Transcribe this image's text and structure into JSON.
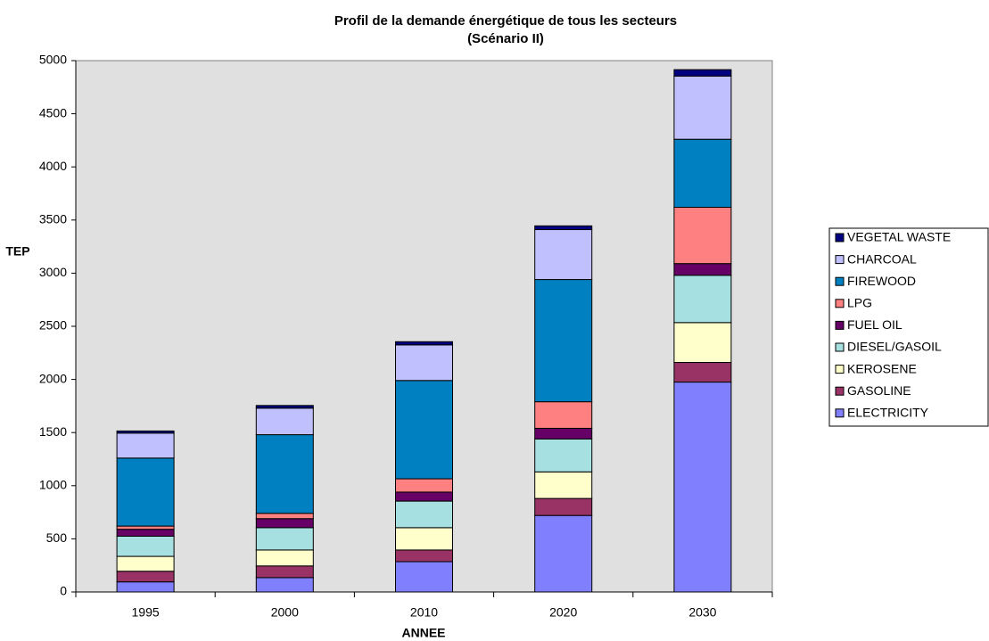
{
  "chart_data": {
    "type": "stacked_bar",
    "title": "Profil de la demande énergétique de tous les secteurs",
    "subtitle": "(Scénario II)",
    "x_label": "ANNEE",
    "y_label": "TEP",
    "categories": [
      "1995",
      "2000",
      "2010",
      "2020",
      "2030"
    ],
    "series": [
      {
        "name": "ELECTRICITY",
        "color": "#8080ff",
        "values": [
          95,
          135,
          285,
          720,
          1975
        ]
      },
      {
        "name": "GASOLINE",
        "color": "#993366",
        "values": [
          100,
          110,
          110,
          160,
          185
        ]
      },
      {
        "name": "KEROSENE",
        "color": "#ffffcc",
        "values": [
          140,
          150,
          210,
          250,
          375
        ]
      },
      {
        "name": "DIESEL/GASOIL",
        "color": "#a6e0e0",
        "values": [
          190,
          210,
          250,
          310,
          445
        ]
      },
      {
        "name": "FUEL OIL",
        "color": "#660066",
        "values": [
          65,
          85,
          85,
          100,
          110
        ]
      },
      {
        "name": "LPG",
        "color": "#ff8080",
        "values": [
          30,
          50,
          125,
          250,
          530
        ]
      },
      {
        "name": "FIREWOOD",
        "color": "#0080c0",
        "values": [
          640,
          740,
          925,
          1150,
          640
        ]
      },
      {
        "name": "CHARCOAL",
        "color": "#c0c0ff",
        "values": [
          235,
          250,
          335,
          470,
          595
        ]
      },
      {
        "name": "VEGETAL WASTE",
        "color": "#000080",
        "values": [
          20,
          25,
          30,
          35,
          60
        ]
      }
    ],
    "ylim": [
      0,
      5000
    ],
    "yticks": [
      0,
      500,
      1000,
      1500,
      2000,
      2500,
      3000,
      3500,
      4000,
      4500,
      5000
    ],
    "grid": false,
    "legend": "right"
  }
}
